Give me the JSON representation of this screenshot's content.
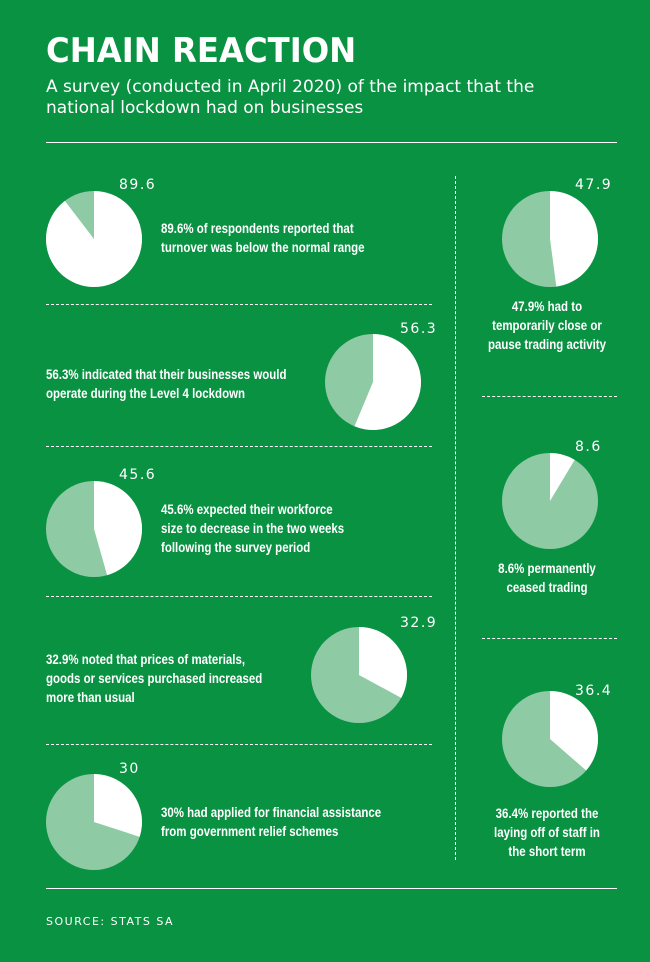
{
  "title": "CHAIN REACTION",
  "subtitle": "A survey (conducted in April 2020) of the impact that the national lockdown had on businesses",
  "source": "SOURCE: STATS SA",
  "colors": {
    "background": "#0a9243",
    "highlight": "#ffffff",
    "light_green": "#8ecaa3"
  },
  "chart_data": [
    {
      "type": "pie",
      "value": 89.6,
      "label": "89.6",
      "caption": "89.6% of respondents reported that turnover was below the normal range",
      "highlight": "white"
    },
    {
      "type": "pie",
      "value": 56.3,
      "label": "56.3",
      "caption": "56.3% indicated that their businesses would operate during the Level 4 lockdown",
      "highlight": "white"
    },
    {
      "type": "pie",
      "value": 45.6,
      "label": "45.6",
      "caption": "45.6% expected their workforce size to decrease in the two weeks following the survey period",
      "highlight": "white"
    },
    {
      "type": "pie",
      "value": 32.9,
      "label": "32.9",
      "caption": "32.9% noted that prices of materials, goods or services purchased increased more than usual",
      "highlight": "white"
    },
    {
      "type": "pie",
      "value": 30,
      "label": "30",
      "caption": "30% had applied for financial assistance from government relief schemes",
      "highlight": "white"
    },
    {
      "type": "pie",
      "value": 47.9,
      "label": "47.9",
      "caption": "47.9% had to temporarily close or pause trading activity",
      "highlight": "white"
    },
    {
      "type": "pie",
      "value": 8.6,
      "label": "8.6",
      "caption": "8.6% permanently ceased trading",
      "highlight": "white"
    },
    {
      "type": "pie",
      "value": 36.4,
      "label": "36.4",
      "caption": "36.4% reported the laying off of staff in the short term",
      "highlight": "white"
    }
  ]
}
